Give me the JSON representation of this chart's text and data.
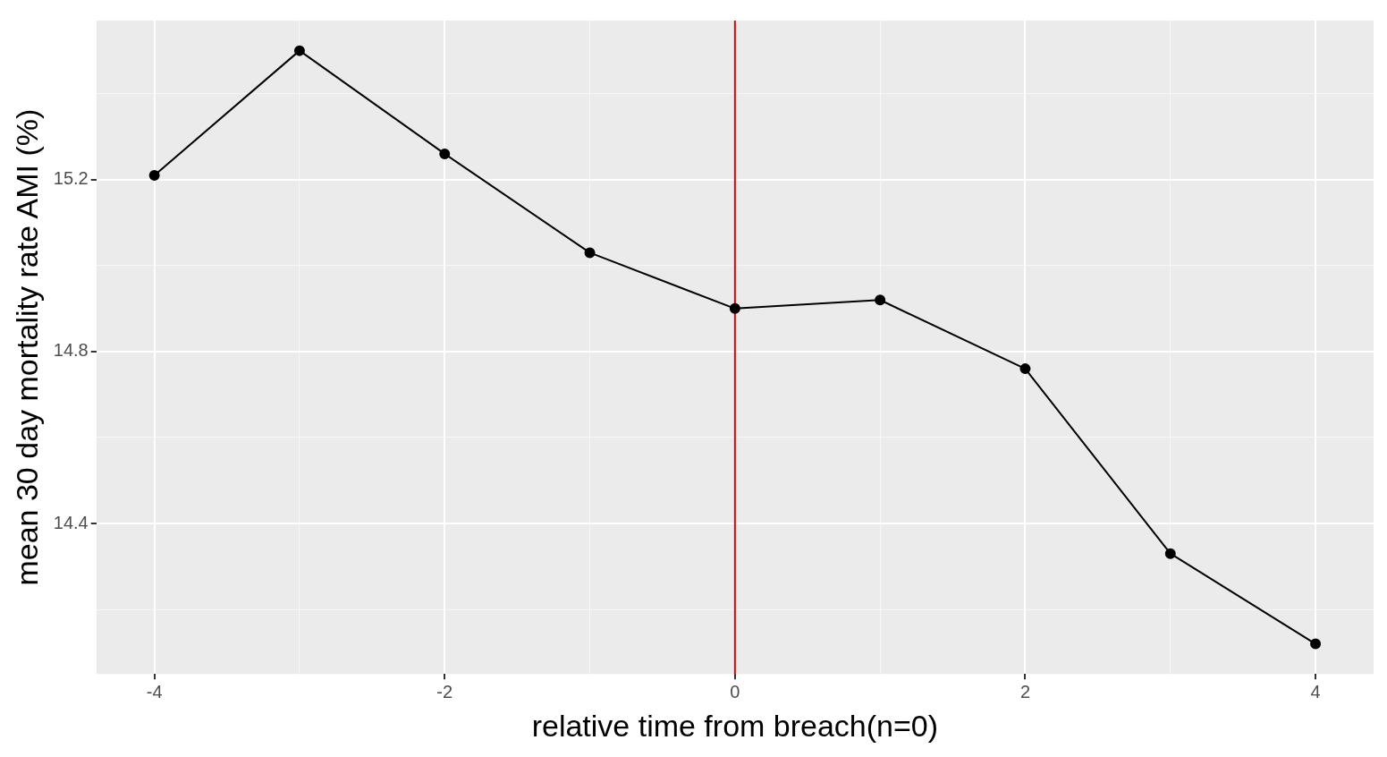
{
  "chart_data": {
    "type": "line",
    "xlabel": "relative time from breach(n=0)",
    "ylabel": "mean 30 day mortality rate AMI (%)",
    "x": [
      -4,
      -3,
      -2,
      -1,
      0,
      1,
      2,
      3,
      4
    ],
    "series": [
      {
        "color": "#000000",
        "values": [
          15.21,
          15.5,
          15.26,
          15.03,
          14.9,
          14.92,
          14.76,
          14.33,
          14.12
        ]
      }
    ],
    "xlim": [
      -4.4,
      4.4
    ],
    "xticks": [
      -4,
      {
        "value": -3,
        "label": null
      },
      -2,
      {
        "value": -1,
        "label": null
      },
      0,
      {
        "value": 1,
        "label": null
      },
      2,
      {
        "value": 3,
        "label": null
      },
      4
    ],
    "ylim": [
      14.05,
      15.57
    ],
    "yticks": [
      {
        "value": 14.2,
        "label": null
      },
      14.4,
      {
        "value": 14.6,
        "label": null
      },
      14.8,
      {
        "value": 15.0,
        "label": null
      },
      15.2,
      {
        "value": 15.4,
        "label": null
      }
    ],
    "ref_lines": [
      {
        "axis": "x",
        "value": 0,
        "color": "#e00000"
      }
    ],
    "grid": true,
    "legend": false,
    "marker": "circle",
    "line_style": "solid"
  }
}
